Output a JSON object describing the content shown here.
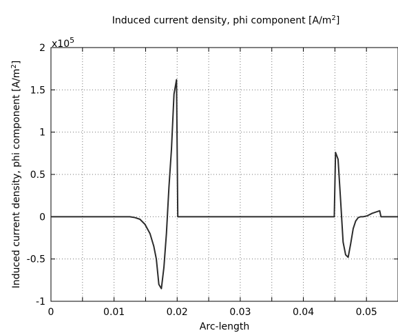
{
  "chart_data": {
    "type": "line",
    "title": {
      "main": "Induced current density, phi component [A/m",
      "sup": "2",
      "tail": "]"
    },
    "xlabel": "Arc-length",
    "ylabel": {
      "main": "Induced current density, phi component [A/m",
      "sup": "2",
      "tail": "]"
    },
    "y_multiplier": {
      "base": "x10",
      "exponent": "5"
    },
    "xlim": [
      0,
      0.055
    ],
    "ylim": [
      -1,
      2
    ],
    "grid": true,
    "x_ticks": [
      {
        "value": 0,
        "label": "0"
      },
      {
        "value": 0.005,
        "label": ""
      },
      {
        "value": 0.01,
        "label": "0.01"
      },
      {
        "value": 0.015,
        "label": ""
      },
      {
        "value": 0.02,
        "label": "0.02"
      },
      {
        "value": 0.025,
        "label": ""
      },
      {
        "value": 0.03,
        "label": "0.03"
      },
      {
        "value": 0.035,
        "label": ""
      },
      {
        "value": 0.04,
        "label": "0.04"
      },
      {
        "value": 0.045,
        "label": ""
      },
      {
        "value": 0.05,
        "label": "0.05"
      }
    ],
    "y_ticks": [
      {
        "value": -1,
        "label": "-1"
      },
      {
        "value": -0.5,
        "label": "-0.5"
      },
      {
        "value": 0,
        "label": "0"
      },
      {
        "value": 0.5,
        "label": "0.5"
      },
      {
        "value": 1,
        "label": "1"
      },
      {
        "value": 1.5,
        "label": "1.5"
      },
      {
        "value": 2,
        "label": "2"
      }
    ],
    "series": [
      {
        "color": "#2b2b2b",
        "x": [
          0,
          0.0125,
          0.0133,
          0.0141,
          0.0149,
          0.0157,
          0.0163,
          0.0167,
          0.0171,
          0.0175,
          0.0179,
          0.0183,
          0.0187,
          0.0191,
          0.0195,
          0.0199,
          0.0201,
          0.0205,
          0.0449,
          0.0451,
          0.0455,
          0.0459,
          0.0463,
          0.0467,
          0.0471,
          0.0475,
          0.0479,
          0.0483,
          0.0487,
          0.0491,
          0.0495,
          0.0501,
          0.0509,
          0.0517,
          0.0521,
          0.0523,
          0.0527,
          0.055
        ],
        "y": [
          0,
          0,
          -0.01,
          -0.03,
          -0.09,
          -0.2,
          -0.35,
          -0.5,
          -0.8,
          -0.85,
          -0.6,
          -0.2,
          0.35,
          0.8,
          1.45,
          1.62,
          0,
          0,
          0,
          0.76,
          0.68,
          0.2,
          -0.3,
          -0.45,
          -0.48,
          -0.32,
          -0.14,
          -0.05,
          -0.01,
          0,
          0,
          0.01,
          0.04,
          0.06,
          0.07,
          0,
          0,
          0
        ]
      }
    ]
  }
}
